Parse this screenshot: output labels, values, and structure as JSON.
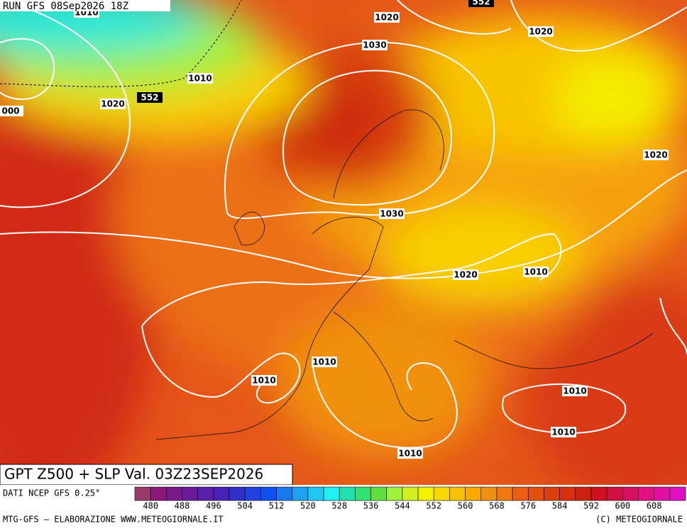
{
  "header": {
    "run": "RUN GFS 08Sep2026 18Z"
  },
  "map": {
    "contour_labels": [
      "1010",
      "552",
      "1020",
      "1030",
      "1020",
      "1010",
      "552",
      "1020",
      "000",
      "1020",
      "1030",
      "1020",
      "1010",
      "1010",
      "1010",
      "1010",
      "1010",
      "1010"
    ],
    "contour_label_dark": [
      false,
      true,
      false,
      false,
      false,
      false,
      true,
      false,
      false,
      false,
      false,
      false,
      false,
      false,
      false,
      false,
      false,
      false
    ]
  },
  "footer": {
    "product": "GPT Z500 + SLP Val. 03Z23SEP2026",
    "source": "DATI NCEP GFS 0.25°",
    "credit": "MTG-GFS — ELABORAZIONE WWW.METEOGIORNALE.IT",
    "copyright": "(C) METEOGIORNALE"
  },
  "scale": {
    "labels": [
      480,
      488,
      496,
      504,
      512,
      520,
      528,
      536,
      544,
      552,
      560,
      568,
      576,
      584,
      592,
      600,
      608
    ],
    "colors": [
      "#9b3b6b",
      "#8b1a7a",
      "#7a1a8a",
      "#6a1a9a",
      "#5a20a8",
      "#4a20b8",
      "#3030c8",
      "#2040e0",
      "#1050f0",
      "#1a78f0",
      "#20a0f0",
      "#20c8f0",
      "#20f0f0",
      "#20e0b0",
      "#30e070",
      "#60e040",
      "#a0f040",
      "#d0f020",
      "#f0f000",
      "#f8d800",
      "#f8c000",
      "#f8a800",
      "#f09010",
      "#f07810",
      "#e86010",
      "#e05010",
      "#d84010",
      "#d83010",
      "#d02010",
      "#d01020",
      "#d01040",
      "#d81060",
      "#e01080",
      "#e010a0",
      "#e010c0"
    ]
  }
}
